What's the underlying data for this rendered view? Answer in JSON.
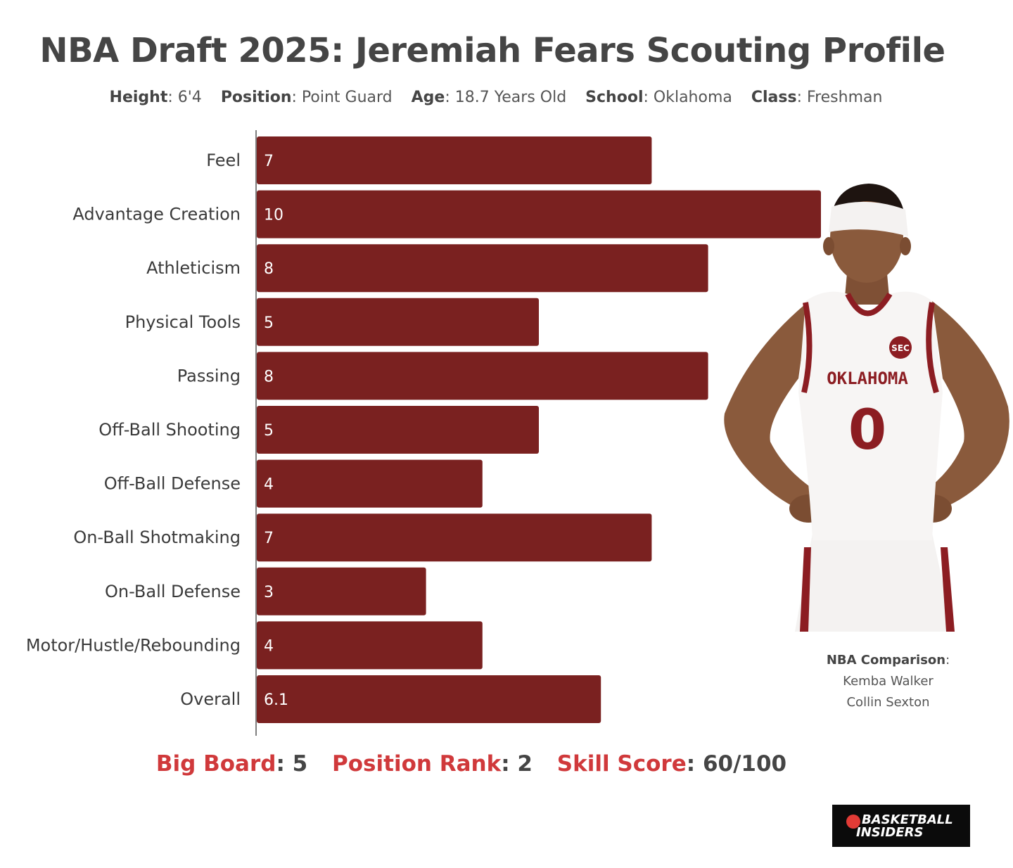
{
  "title": "NBA Draft 2025: Jeremiah Fears Scouting Profile",
  "profile": [
    {
      "key": "Height",
      "value": ": 6'4"
    },
    {
      "key": "Position",
      "value": ": Point Guard"
    },
    {
      "key": "Age",
      "value": ": 18.7 Years Old"
    },
    {
      "key": "School",
      "value": ": Oklahoma"
    },
    {
      "key": "Class",
      "value": ": Freshman"
    }
  ],
  "chart_data": {
    "type": "bar",
    "orientation": "horizontal",
    "categories": [
      "Feel",
      "Advantage Creation",
      "Athleticism",
      "Physical Tools",
      "Passing",
      "Off-Ball Shooting",
      "Off-Ball Defense",
      "On-Ball Shotmaking",
      "On-Ball Defense",
      "Motor/Hustle/Rebounding",
      "Overall"
    ],
    "values": [
      7,
      10,
      8,
      5,
      8,
      5,
      4,
      7,
      3,
      4,
      6.1
    ],
    "value_labels": [
      "7",
      "10",
      "8",
      "5",
      "8",
      "5",
      "4",
      "7",
      "3",
      "4",
      "6.1"
    ],
    "xlim": [
      0,
      10
    ],
    "grid": false,
    "bar_color": "#7a2120"
  },
  "comparison": {
    "label": "NBA Comparison",
    "sep": ":",
    "players": [
      "Kemba Walker",
      "Collin Sexton"
    ]
  },
  "footer": [
    {
      "key": "Big Board",
      "sep": ": ",
      "value": "5"
    },
    {
      "key": "Position Rank",
      "sep": ": ",
      "value": "2"
    },
    {
      "key": "Skill Score",
      "sep": ": ",
      "value": "60/100"
    }
  ],
  "logo": {
    "line1": "BASKETBALL",
    "line2": "INSIDERS"
  },
  "player_photo": {
    "jersey_text": "OKLAHOMA",
    "jersey_number": "0",
    "patch": "SEC"
  },
  "colors": {
    "accent": "#d0393b",
    "bar": "#7a2120",
    "jersey_trim": "#8c1d22"
  }
}
